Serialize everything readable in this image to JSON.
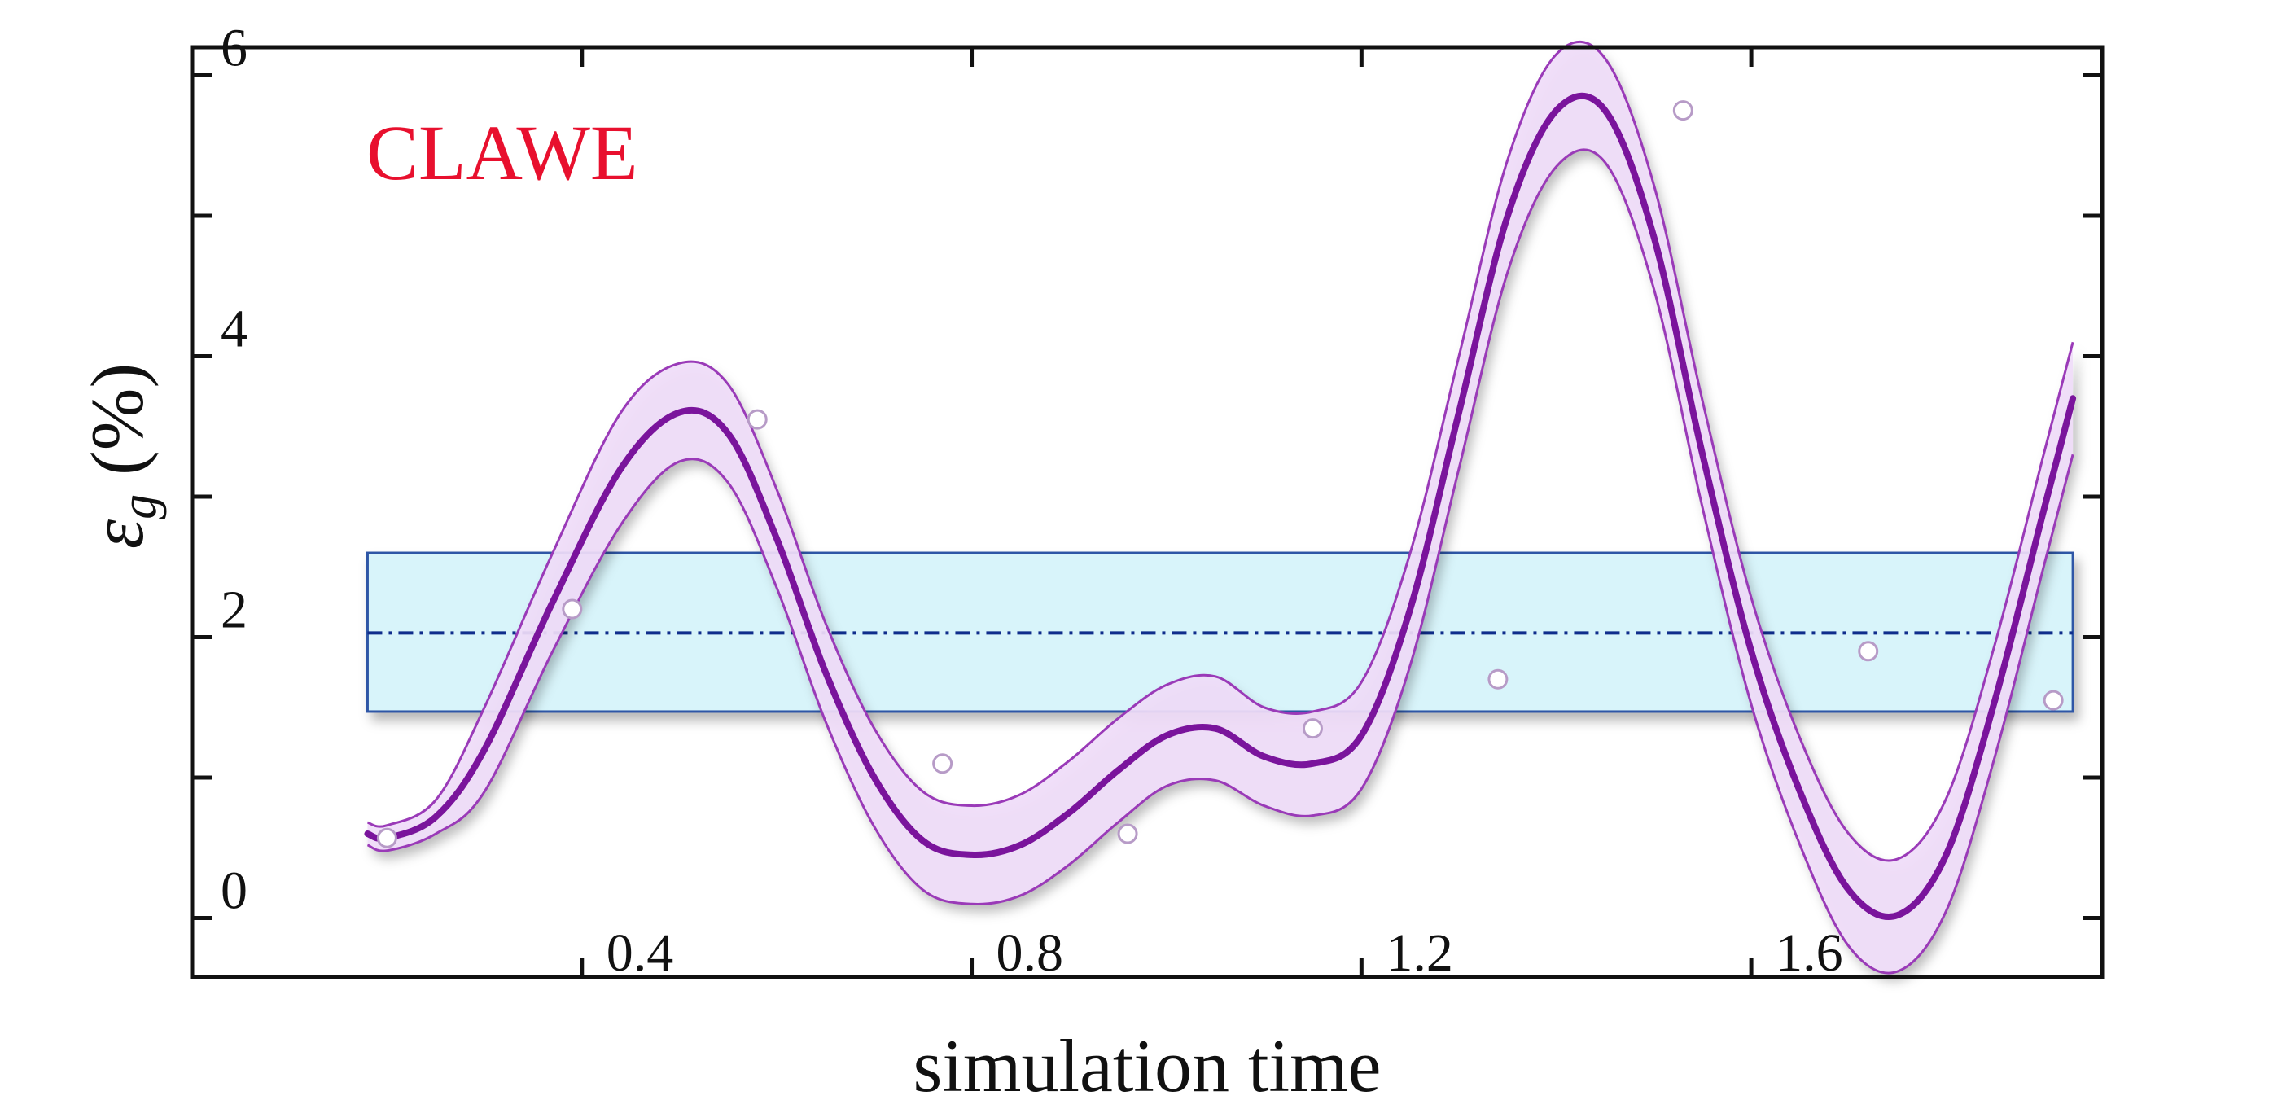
{
  "chart_data": {
    "type": "line",
    "title": "",
    "annotation": "CLAWE",
    "xlabel": "simulation time",
    "ylabel_prefix": "ε",
    "ylabel_subscript": "g",
    "ylabel_suffix": " (%)",
    "xlim": [
      0.0,
      1.96
    ],
    "ylim": [
      -0.42,
      6.2
    ],
    "x_ticks": [
      {
        "value": 0.4,
        "label": "0.4"
      },
      {
        "value": 0.8,
        "label": "0.8"
      },
      {
        "value": 1.2,
        "label": "1.2"
      },
      {
        "value": 1.6,
        "label": "1.6"
      }
    ],
    "y_ticks": [
      {
        "value": 0,
        "label": "0"
      },
      {
        "value": 1,
        "label": ""
      },
      {
        "value": 2,
        "label": "2"
      },
      {
        "value": 3,
        "label": ""
      },
      {
        "value": 4,
        "label": "4"
      },
      {
        "value": 5,
        "label": ""
      },
      {
        "value": 6,
        "label": "6"
      }
    ],
    "reference": {
      "mean": 2.03,
      "band": [
        1.47,
        2.6
      ]
    },
    "x_range": [
      0.18,
      1.93
    ],
    "series": [
      {
        "name": "mean",
        "x": [
          0.18,
          0.2,
          0.25,
          0.3,
          0.37,
          0.44,
          0.5,
          0.55,
          0.6,
          0.65,
          0.7,
          0.75,
          0.8,
          0.85,
          0.9,
          0.95,
          1.0,
          1.05,
          1.1,
          1.15,
          1.2,
          1.25,
          1.3,
          1.35,
          1.4,
          1.45,
          1.5,
          1.55,
          1.6,
          1.65,
          1.7,
          1.75,
          1.8,
          1.85,
          1.9,
          1.93
        ],
        "y": [
          0.6,
          0.57,
          0.72,
          1.2,
          2.25,
          3.2,
          3.6,
          3.45,
          2.7,
          1.75,
          1.0,
          0.55,
          0.45,
          0.52,
          0.75,
          1.05,
          1.3,
          1.35,
          1.15,
          1.1,
          1.3,
          2.2,
          3.6,
          5.0,
          5.75,
          5.75,
          4.85,
          3.3,
          1.9,
          0.9,
          0.2,
          0.02,
          0.45,
          1.55,
          2.9,
          3.7
        ]
      },
      {
        "name": "upper",
        "x": [
          0.18,
          0.2,
          0.25,
          0.3,
          0.37,
          0.44,
          0.5,
          0.55,
          0.6,
          0.65,
          0.7,
          0.75,
          0.8,
          0.85,
          0.9,
          0.95,
          1.0,
          1.05,
          1.1,
          1.15,
          1.2,
          1.25,
          1.3,
          1.35,
          1.4,
          1.45,
          1.5,
          1.55,
          1.6,
          1.65,
          1.7,
          1.75,
          1.8,
          1.85,
          1.9,
          1.93
        ],
        "y": [
          0.68,
          0.66,
          0.84,
          1.5,
          2.6,
          3.6,
          3.95,
          3.8,
          3.05,
          2.1,
          1.35,
          0.9,
          0.8,
          0.88,
          1.12,
          1.42,
          1.66,
          1.72,
          1.5,
          1.47,
          1.68,
          2.6,
          4.0,
          5.4,
          6.15,
          6.12,
          5.22,
          3.68,
          2.28,
          1.28,
          0.6,
          0.42,
          0.85,
          1.95,
          3.3,
          4.1
        ]
      },
      {
        "name": "lower",
        "x": [
          0.18,
          0.2,
          0.25,
          0.3,
          0.37,
          0.44,
          0.5,
          0.55,
          0.6,
          0.65,
          0.7,
          0.75,
          0.8,
          0.85,
          0.9,
          0.95,
          1.0,
          1.05,
          1.1,
          1.15,
          1.2,
          1.25,
          1.3,
          1.35,
          1.4,
          1.45,
          1.5,
          1.55,
          1.6,
          1.65,
          1.7,
          1.75,
          1.8,
          1.85,
          1.9,
          1.93
        ],
        "y": [
          0.52,
          0.48,
          0.6,
          0.9,
          1.9,
          2.8,
          3.25,
          3.1,
          2.35,
          1.4,
          0.65,
          0.2,
          0.1,
          0.16,
          0.38,
          0.68,
          0.94,
          0.98,
          0.8,
          0.73,
          0.92,
          1.8,
          3.2,
          4.6,
          5.35,
          5.38,
          4.48,
          2.92,
          1.52,
          0.52,
          -0.2,
          -0.38,
          0.05,
          1.15,
          2.5,
          3.3
        ]
      }
    ],
    "markers": [
      {
        "x": 0.2,
        "y": 0.57
      },
      {
        "x": 0.39,
        "y": 2.2
      },
      {
        "x": 0.58,
        "y": 3.55
      },
      {
        "x": 0.77,
        "y": 1.1
      },
      {
        "x": 0.96,
        "y": 0.6
      },
      {
        "x": 1.15,
        "y": 1.35
      },
      {
        "x": 1.34,
        "y": 1.7
      },
      {
        "x": 1.53,
        "y": 5.75
      },
      {
        "x": 1.72,
        "y": 1.9
      },
      {
        "x": 1.91,
        "y": 1.55
      }
    ],
    "grid": false,
    "legend": "none",
    "colors": {
      "mean_line": "#7a149c",
      "band_fill": "#f0dcf8",
      "band_edge": "#9a3ab8",
      "ref_fill": "#d8f4fa",
      "ref_edge": "#2f56a6",
      "ref_line": "#0f2d8c",
      "marker_fill": "#ffffff",
      "marker_edge": "#b79bc7",
      "annotation": "#e8102e",
      "axis": "#111111"
    }
  }
}
